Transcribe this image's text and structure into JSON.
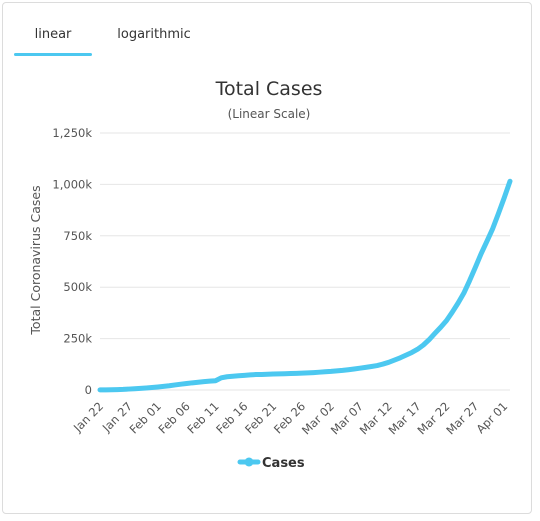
{
  "tabs": [
    {
      "label": "linear",
      "active": true
    },
    {
      "label": "logarithmic",
      "active": false
    }
  ],
  "colors": {
    "series": "#4cc8f0",
    "tab_underline": "#4cc8f0",
    "grid": "#e6e6e6"
  },
  "chart_data": {
    "type": "line",
    "title": "Total Cases",
    "subtitle": "(Linear Scale)",
    "ylabel": "Total Coronavirus Cases",
    "xlabel": "",
    "ylim": [
      0,
      1250000
    ],
    "yticks": [
      0,
      250000,
      500000,
      750000,
      1000000,
      1250000
    ],
    "ytick_labels": [
      "0",
      "250k",
      "500k",
      "750k",
      "1,000k",
      "1,250k"
    ],
    "xtick_labels": [
      "Jan 22",
      "Jan 27",
      "Feb 01",
      "Feb 06",
      "Feb 11",
      "Feb 16",
      "Feb 21",
      "Feb 26",
      "Mar 02",
      "Mar 07",
      "Mar 12",
      "Mar 17",
      "Mar 22",
      "Mar 27",
      "Apr 01"
    ],
    "grid": true,
    "legend_position": "bottom",
    "series": [
      {
        "name": "Cases",
        "x": [
          "Jan 22",
          "Jan 23",
          "Jan 24",
          "Jan 25",
          "Jan 26",
          "Jan 27",
          "Jan 28",
          "Jan 29",
          "Jan 30",
          "Jan 31",
          "Feb 01",
          "Feb 02",
          "Feb 03",
          "Feb 04",
          "Feb 05",
          "Feb 06",
          "Feb 07",
          "Feb 08",
          "Feb 09",
          "Feb 10",
          "Feb 11",
          "Feb 12",
          "Feb 13",
          "Feb 14",
          "Feb 15",
          "Feb 16",
          "Feb 17",
          "Feb 18",
          "Feb 19",
          "Feb 20",
          "Feb 21",
          "Feb 22",
          "Feb 23",
          "Feb 24",
          "Feb 25",
          "Feb 26",
          "Feb 27",
          "Feb 28",
          "Feb 29",
          "Mar 01",
          "Mar 02",
          "Mar 03",
          "Mar 04",
          "Mar 05",
          "Mar 06",
          "Mar 07",
          "Mar 08",
          "Mar 09",
          "Mar 10",
          "Mar 11",
          "Mar 12",
          "Mar 13",
          "Mar 14",
          "Mar 15",
          "Mar 16",
          "Mar 17",
          "Mar 18",
          "Mar 19",
          "Mar 20",
          "Mar 21",
          "Mar 22",
          "Mar 23",
          "Mar 24",
          "Mar 25",
          "Mar 26",
          "Mar 27",
          "Mar 28",
          "Mar 29",
          "Mar 30",
          "Mar 31",
          "Apr 01",
          "Apr 02"
        ],
        "values": [
          580,
          845,
          1317,
          2015,
          2800,
          4581,
          6058,
          7813,
          9823,
          11950,
          14553,
          17391,
          20630,
          24545,
          28266,
          31439,
          34876,
          37552,
          40553,
          43099,
          45134,
          59287,
          64438,
          67100,
          69197,
          71329,
          73332,
          75184,
          75700,
          76677,
          77673,
          78651,
          79205,
          80087,
          80828,
          81820,
          83112,
          84615,
          86604,
          88585,
          90443,
          93016,
          95314,
          98425,
          102050,
          106099,
          109991,
          114381,
          118948,
          126214,
          134576,
          145483,
          156653,
          169593,
          182490,
          198238,
          218822,
          244933,
          275597,
          305036,
          337489,
          378287,
          422574,
          471035,
          531865,
          596366,
          663127,
          723390,
          784716,
          858361,
          935197,
          1015466
        ]
      }
    ]
  }
}
